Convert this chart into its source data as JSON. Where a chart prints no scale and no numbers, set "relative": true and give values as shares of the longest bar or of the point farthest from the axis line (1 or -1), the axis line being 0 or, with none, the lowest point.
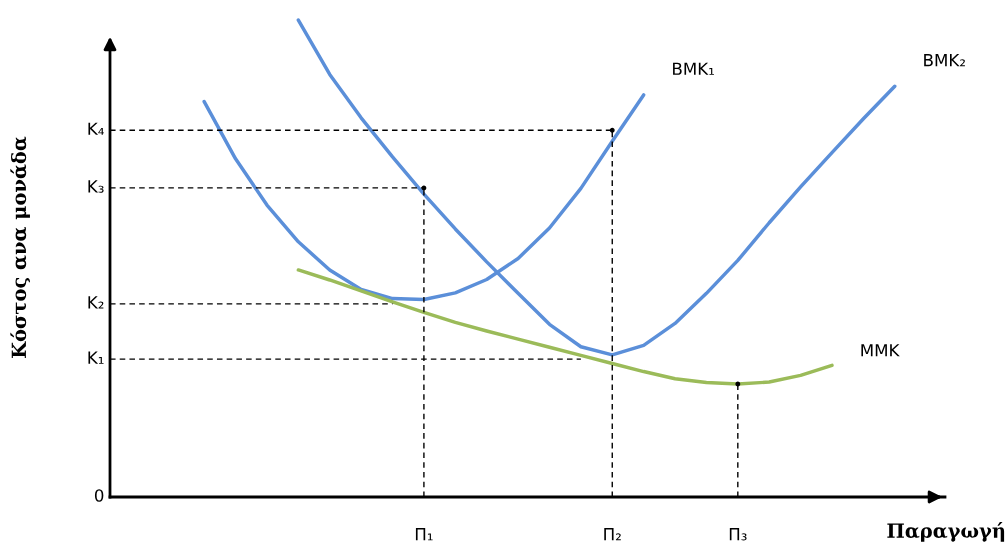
{
  "chart_data": {
    "type": "line",
    "relative": true,
    "xlabel": "Παραγωγή",
    "ylabel": "Κόστος ανα μονάδα",
    "categories": [
      null,
      null,
      null,
      null,
      null,
      null,
      null,
      null,
      null,
      null,
      "Π₁",
      null,
      null,
      null,
      null,
      null,
      "Π₂",
      null,
      null,
      null,
      "Π₃",
      null,
      null,
      null,
      null,
      null,
      null
    ],
    "annotations": [
      "0"
    ],
    "grid": false,
    "legend": false,
    "marker": "none",
    "series": [
      {
        "name": "BMK₁",
        "color": "#5b8fd9",
        "line_style": "solid",
        "values": [
          null,
          null,
          null,
          0.829,
          0.709,
          0.612,
          0.535,
          0.476,
          0.435,
          0.416,
          0.414,
          0.428,
          0.456,
          0.5,
          0.564,
          0.647,
          0.746,
          0.843,
          null,
          null,
          null,
          null,
          null,
          null,
          null,
          null,
          null
        ]
      },
      {
        "name": "BMK₂",
        "color": "#5b8fd9",
        "line_style": "solid",
        "values": [
          null,
          null,
          null,
          null,
          null,
          null,
          1.0,
          0.886,
          0.795,
          0.713,
          0.635,
          0.562,
          0.493,
          0.427,
          0.362,
          0.315,
          0.298,
          0.318,
          0.364,
          0.427,
          0.496,
          0.575,
          0.65,
          0.722,
          0.793,
          0.861,
          null
        ]
      },
      {
        "name": "MMK",
        "color": "#9bbb59",
        "line_style": "solid",
        "values": [
          null,
          null,
          null,
          null,
          null,
          null,
          0.476,
          0.455,
          0.432,
          0.409,
          0.387,
          0.366,
          0.348,
          0.331,
          0.314,
          0.297,
          0.28,
          0.263,
          0.248,
          0.24,
          0.237,
          0.241,
          0.255,
          0.276,
          null,
          null,
          null
        ]
      },
      {
        "name": "Κ₄",
        "color": "#000000",
        "line_style": "dashed",
        "values": [
          0.769,
          0.769,
          0.769,
          0.769,
          0.769,
          0.769,
          0.769,
          0.769,
          0.769,
          0.769,
          0.769,
          0.769,
          0.769,
          0.769,
          0.769,
          0.769,
          0.769,
          null,
          null,
          null,
          null,
          null,
          null,
          null,
          null,
          null,
          null
        ]
      },
      {
        "name": "Κ₃",
        "color": "#000000",
        "line_style": "dashed",
        "values": [
          0.648,
          0.648,
          0.648,
          0.648,
          0.648,
          0.648,
          0.648,
          0.648,
          0.648,
          0.648,
          0.648,
          null,
          null,
          null,
          null,
          null,
          null,
          null,
          null,
          null,
          null,
          null,
          null,
          null,
          null,
          null,
          null
        ]
      },
      {
        "name": "Κ₂",
        "color": "#000000",
        "line_style": "dashed",
        "values": [
          0.405,
          0.405,
          0.405,
          0.405,
          0.405,
          0.405,
          0.405,
          0.405,
          0.405,
          0.405,
          null,
          null,
          null,
          null,
          null,
          null,
          null,
          null,
          null,
          null,
          null,
          null,
          null,
          null,
          null,
          null,
          null
        ]
      },
      {
        "name": "Κ₁",
        "color": "#000000",
        "line_style": "dashed",
        "values": [
          0.289,
          0.289,
          0.289,
          0.289,
          0.289,
          0.289,
          0.289,
          0.289,
          0.289,
          0.289,
          0.289,
          0.289,
          0.289,
          0.289,
          0.289,
          0.289,
          null,
          null,
          null,
          null,
          null,
          null,
          null,
          null,
          null,
          null,
          null
        ]
      },
      {
        "type": "lollipop",
        "color": "#000000",
        "line_style": "dashed",
        "values": [
          null,
          null,
          null,
          null,
          null,
          null,
          null,
          null,
          null,
          null,
          0.648,
          null,
          null,
          null,
          null,
          null,
          0.769,
          null,
          null,
          null,
          0.237,
          null,
          null,
          null,
          null,
          null,
          null
        ]
      }
    ]
  }
}
